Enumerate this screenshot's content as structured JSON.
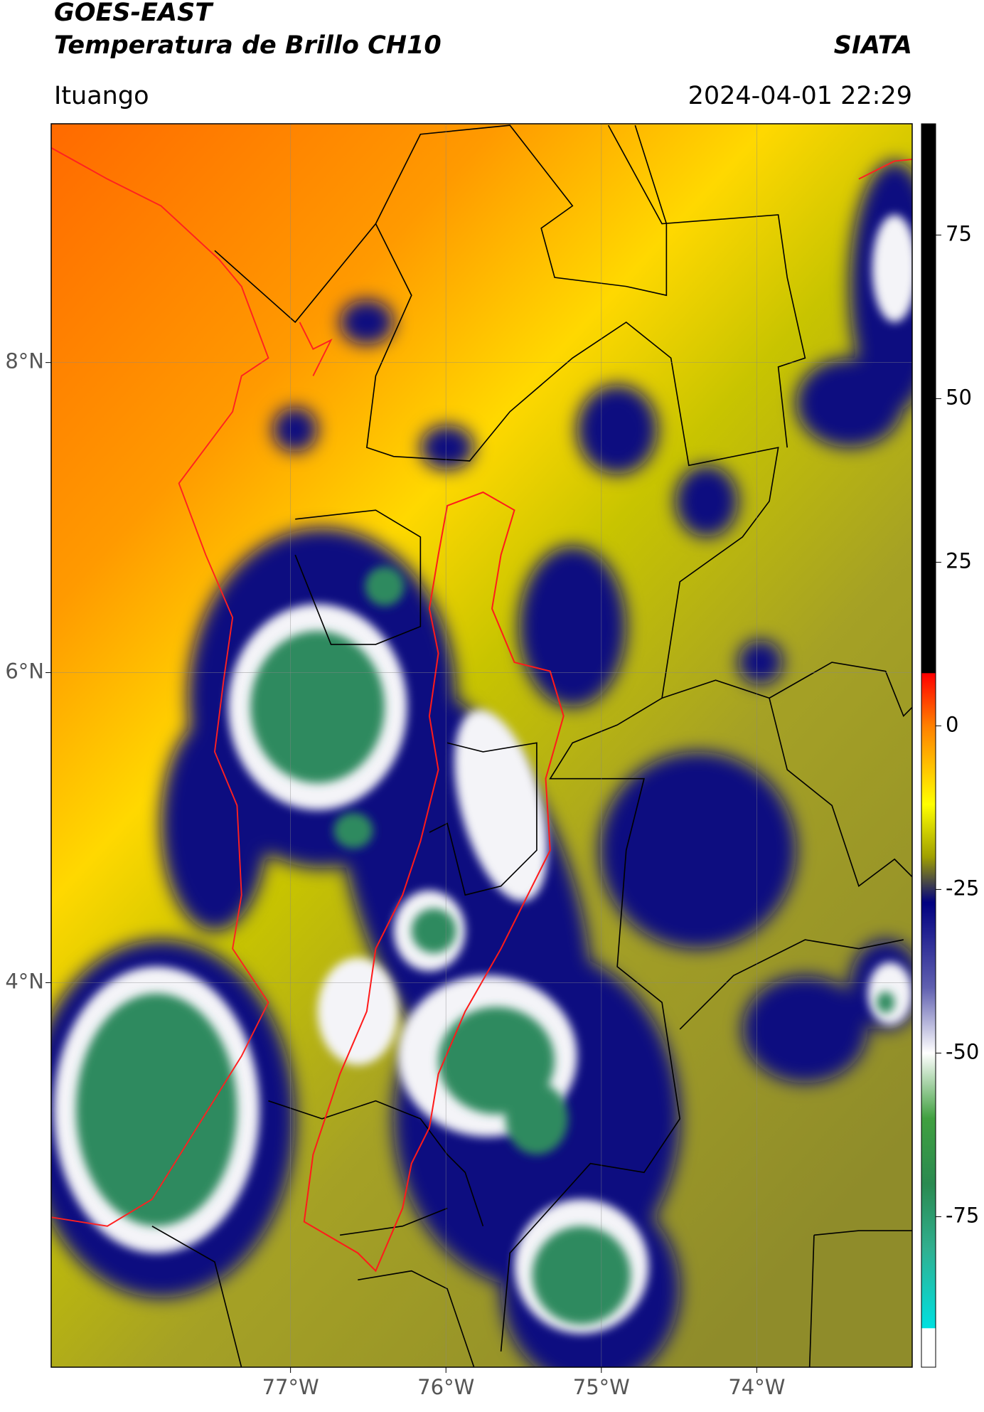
{
  "header": {
    "title": "GOES-EAST",
    "subtitle": "Temperatura de Brillo CH10",
    "agency": "SIATA",
    "region": "Ituango",
    "timestamp": "2024-04-01 22:29"
  },
  "map": {
    "xlim": [
      -78.54,
      -73.0
    ],
    "ylim": [
      1.52,
      9.54
    ],
    "xticks": [
      {
        "value": -77,
        "label": "77°W"
      },
      {
        "value": -76,
        "label": "76°W"
      },
      {
        "value": -75,
        "label": "75°W"
      },
      {
        "value": -74,
        "label": "74°W"
      }
    ],
    "yticks": [
      {
        "value": 8,
        "label": "8°N"
      },
      {
        "value": 6,
        "label": "6°N"
      },
      {
        "value": 4,
        "label": "4°N"
      }
    ],
    "grid": true
  },
  "colorbar": {
    "lim": [
      -98,
      92
    ],
    "ticks": [
      75,
      50,
      25,
      0,
      -25,
      -50,
      -75
    ],
    "stops": [
      {
        "value": 92,
        "color": "#000000"
      },
      {
        "value": 8.1,
        "color": "#000000"
      },
      {
        "value": 8,
        "color": "#ff0000"
      },
      {
        "value": 0,
        "color": "#ff8000"
      },
      {
        "value": -12,
        "color": "#ffff00"
      },
      {
        "value": -20,
        "color": "#a0a000"
      },
      {
        "value": -27,
        "color": "#000080"
      },
      {
        "value": -40,
        "color": "#6060b0"
      },
      {
        "value": -50,
        "color": "#ffffff"
      },
      {
        "value": -60,
        "color": "#40a040"
      },
      {
        "value": -70,
        "color": "#2a8a50"
      },
      {
        "value": -80,
        "color": "#30b090"
      },
      {
        "value": -92,
        "color": "#00e0e0"
      },
      {
        "value": -92.1,
        "color": "#ffffff"
      },
      {
        "value": -98,
        "color": "#ffffff"
      }
    ]
  }
}
